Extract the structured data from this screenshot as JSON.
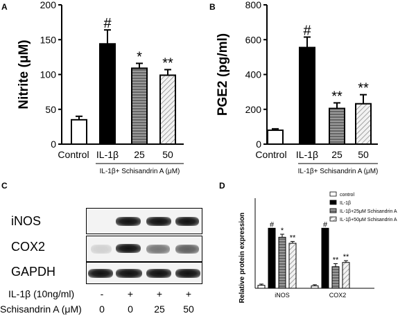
{
  "chart_data": [
    {
      "panel": "A",
      "type": "bar",
      "ylabel": "Nitrite (μM)",
      "ylim": [
        0,
        200
      ],
      "yticks": [
        0,
        50,
        100,
        150,
        200
      ],
      "categories": [
        "Control",
        "IL-1β",
        "25",
        "50"
      ],
      "values": [
        35,
        144,
        109,
        99
      ],
      "errors": [
        5,
        20,
        7,
        8
      ],
      "annotations": [
        "",
        "#",
        "*",
        "**"
      ],
      "group_label": "IL-1β+ Schisandrin A (μM)"
    },
    {
      "panel": "B",
      "type": "bar",
      "ylabel": "PGE2 (pg/ml)",
      "ylim": [
        0,
        800
      ],
      "yticks": [
        0,
        200,
        400,
        600,
        800
      ],
      "categories": [
        "Control",
        "IL-1β",
        "25",
        "50"
      ],
      "values": [
        80,
        555,
        205,
        232
      ],
      "errors": [
        8,
        60,
        32,
        52
      ],
      "annotations": [
        "",
        "#",
        "**",
        "**"
      ],
      "group_label": "IL-1β+ Schisandrin A (μM)"
    },
    {
      "panel": "D",
      "type": "bar",
      "ylabel": "Relative protein expression",
      "ylim": [
        0,
        1.5
      ],
      "categories": [
        "iNOS",
        "COX2"
      ],
      "series": [
        {
          "name": "control",
          "values": [
            0.05,
            0.04
          ],
          "errors": [
            0.02,
            0.02
          ],
          "annotations": [
            "",
            ""
          ]
        },
        {
          "name": "IL-1β",
          "values": [
            1.0,
            1.0
          ],
          "errors": [
            0,
            0
          ],
          "annotations": [
            "#",
            "#"
          ]
        },
        {
          "name": "IL-1β+25μM Schisandrin A",
          "values": [
            0.85,
            0.36
          ],
          "errors": [
            0.05,
            0.05
          ],
          "annotations": [
            "*",
            "**"
          ]
        },
        {
          "name": "IL-1β+50μM Schisandrin A",
          "values": [
            0.75,
            0.43
          ],
          "errors": [
            0.03,
            0.03
          ],
          "annotations": [
            "**",
            "**"
          ]
        }
      ],
      "legend": "top-right"
    }
  ],
  "labels": {
    "a": "A",
    "b": "B",
    "c": "C",
    "d": "D"
  },
  "blot": {
    "rows": [
      "iNOS",
      "COX2",
      "GAPDH"
    ],
    "conditions": [
      {
        "label": "IL-1β (10ng/ml)",
        "values": [
          "-",
          "+",
          "+",
          "+"
        ]
      },
      {
        "label": "Schisandrin A (μM)",
        "values": [
          "0",
          "0",
          "25",
          "50"
        ]
      }
    ]
  }
}
